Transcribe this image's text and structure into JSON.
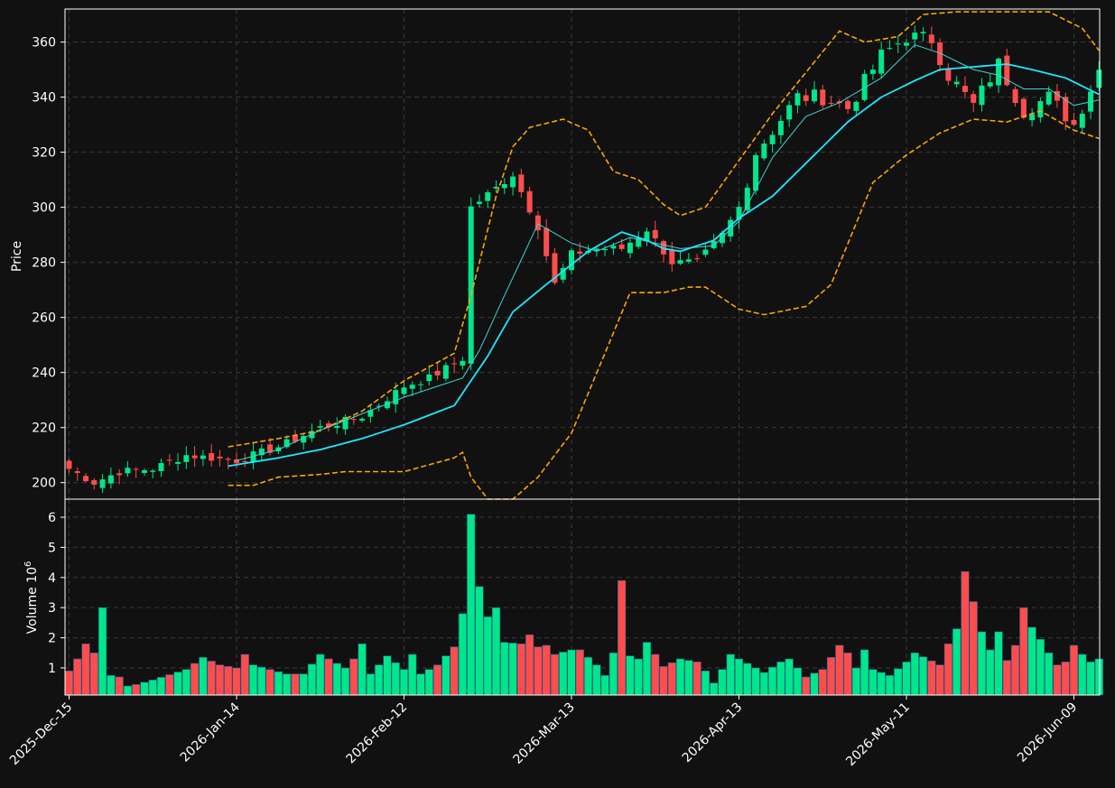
{
  "chart_data": {
    "type": "candlestick",
    "colors": {
      "background": "#111111",
      "up": "#00e68a",
      "down": "#ff4d4d",
      "ma_fast": "#3fd4d4",
      "ma_slow": "#1ee8ff",
      "bollinger": "#ffa500",
      "grid": "#3a3a3a",
      "axis": "#ffffff"
    },
    "price_panel": {
      "ylabel": "Price",
      "ylim": [
        194,
        372
      ],
      "yticks": [
        200,
        220,
        240,
        260,
        280,
        300,
        320,
        340,
        360
      ]
    },
    "volume_panel": {
      "ylabel": "Volume  10",
      "ylabel_exponent": "6",
      "ylim": [
        0.1,
        6.6
      ],
      "yticks": [
        1,
        2,
        3,
        4,
        5,
        6
      ]
    },
    "x_ticks": [
      {
        "index": 0,
        "label": "2025-Dec-15"
      },
      {
        "index": 20,
        "label": "2026-Jan-14"
      },
      {
        "index": 40,
        "label": "2026-Feb-12"
      },
      {
        "index": 60,
        "label": "2026-Mar-13"
      },
      {
        "index": 80,
        "label": "2026-Apr-13"
      },
      {
        "index": 100,
        "label": "2026-May-11"
      },
      {
        "index": 120,
        "label": "2026-Jun-09"
      }
    ],
    "num_sessions": 124,
    "anchors": {
      "close": [
        [
          0,
          205
        ],
        [
          3,
          200
        ],
        [
          6,
          204
        ],
        [
          10,
          205
        ],
        [
          14,
          210
        ],
        [
          20,
          208
        ],
        [
          25,
          213
        ],
        [
          30,
          220
        ],
        [
          35,
          224
        ],
        [
          40,
          235
        ],
        [
          43,
          238
        ],
        [
          47,
          245
        ],
        [
          48,
          300
        ],
        [
          51,
          307
        ],
        [
          53,
          312
        ],
        [
          56,
          293
        ],
        [
          58,
          272
        ],
        [
          60,
          283
        ],
        [
          63,
          285
        ],
        [
          66,
          285
        ],
        [
          69,
          292
        ],
        [
          72,
          280
        ],
        [
          75,
          280
        ],
        [
          78,
          290
        ],
        [
          80,
          300
        ],
        [
          82,
          320
        ],
        [
          84,
          328
        ],
        [
          87,
          340
        ],
        [
          90,
          340
        ],
        [
          93,
          336
        ],
        [
          97,
          355
        ],
        [
          100,
          362
        ],
        [
          103,
          361
        ],
        [
          105,
          348
        ],
        [
          108,
          337
        ],
        [
          111,
          352
        ],
        [
          114,
          335
        ],
        [
          117,
          340
        ],
        [
          120,
          330
        ],
        [
          123,
          350
        ]
      ],
      "ma_fast": [
        [
          20,
          208
        ],
        [
          25,
          212
        ],
        [
          30,
          219
        ],
        [
          35,
          225
        ],
        [
          40,
          231
        ],
        [
          47,
          238
        ],
        [
          49,
          248
        ],
        [
          52,
          268
        ],
        [
          56,
          294
        ],
        [
          60,
          287
        ],
        [
          63,
          284
        ],
        [
          67,
          289
        ],
        [
          70,
          287
        ],
        [
          73,
          285
        ],
        [
          77,
          286
        ],
        [
          80,
          295
        ],
        [
          84,
          318
        ],
        [
          88,
          333
        ],
        [
          92,
          338
        ],
        [
          97,
          347
        ],
        [
          101,
          359
        ],
        [
          104,
          356
        ],
        [
          108,
          350
        ],
        [
          111,
          348
        ],
        [
          114,
          343
        ],
        [
          117,
          343
        ],
        [
          120,
          337
        ],
        [
          123,
          339
        ]
      ],
      "ma_slow": [
        [
          19,
          206
        ],
        [
          25,
          209
        ],
        [
          30,
          212
        ],
        [
          35,
          216
        ],
        [
          40,
          221
        ],
        [
          46,
          228
        ],
        [
          50,
          246
        ],
        [
          53,
          262
        ],
        [
          57,
          272
        ],
        [
          62,
          284
        ],
        [
          66,
          291
        ],
        [
          69,
          288
        ],
        [
          71,
          285
        ],
        [
          73,
          284
        ],
        [
          77,
          288
        ],
        [
          80,
          296
        ],
        [
          84,
          304
        ],
        [
          88,
          316
        ],
        [
          93,
          331
        ],
        [
          97,
          340
        ],
        [
          101,
          346
        ],
        [
          104,
          350
        ],
        [
          108,
          351
        ],
        [
          112,
          352
        ],
        [
          115,
          350
        ],
        [
          119,
          347
        ],
        [
          123,
          341
        ]
      ],
      "bb_upper": [
        [
          19,
          213
        ],
        [
          25,
          216
        ],
        [
          30,
          219
        ],
        [
          35,
          226
        ],
        [
          40,
          237
        ],
        [
          46,
          247
        ],
        [
          48,
          268
        ],
        [
          51,
          304
        ],
        [
          53,
          322
        ],
        [
          55,
          329
        ],
        [
          59,
          332
        ],
        [
          62,
          328
        ],
        [
          65,
          313
        ],
        [
          68,
          310
        ],
        [
          71,
          301
        ],
        [
          73,
          297
        ],
        [
          76,
          300
        ],
        [
          80,
          317
        ],
        [
          84,
          334
        ],
        [
          88,
          349
        ],
        [
          92,
          364
        ],
        [
          95,
          360
        ],
        [
          99,
          362
        ],
        [
          102,
          370
        ],
        [
          106,
          371
        ],
        [
          112,
          371
        ],
        [
          117,
          371
        ],
        [
          121,
          365
        ],
        [
          123,
          357
        ]
      ],
      "bb_lower": [
        [
          19,
          199
        ],
        [
          22,
          199
        ],
        [
          25,
          202
        ],
        [
          30,
          203
        ],
        [
          33,
          204
        ],
        [
          40,
          204
        ],
        [
          46,
          209
        ],
        [
          47,
          211
        ],
        [
          48,
          202
        ],
        [
          50,
          194
        ],
        [
          53,
          194
        ],
        [
          56,
          202
        ],
        [
          60,
          218
        ],
        [
          64,
          247
        ],
        [
          67,
          269
        ],
        [
          71,
          269
        ],
        [
          74,
          271
        ],
        [
          76,
          271
        ],
        [
          80,
          263
        ],
        [
          83,
          261
        ],
        [
          88,
          264
        ],
        [
          91,
          272
        ],
        [
          96,
          309
        ],
        [
          100,
          319
        ],
        [
          104,
          327
        ],
        [
          108,
          332
        ],
        [
          112,
          331
        ],
        [
          116,
          335
        ],
        [
          120,
          328
        ],
        [
          123,
          325
        ]
      ],
      "volume": [
        [
          0,
          0.9
        ],
        [
          1,
          1.3
        ],
        [
          2,
          1.8
        ],
        [
          3,
          1.5
        ],
        [
          4,
          3.0
        ],
        [
          5,
          0.75
        ],
        [
          6,
          0.7
        ],
        [
          7,
          0.4
        ],
        [
          8,
          0.45
        ],
        [
          10,
          0.6
        ],
        [
          14,
          0.95
        ],
        [
          16,
          1.35
        ],
        [
          18,
          1.1
        ],
        [
          20,
          1.0
        ],
        [
          21,
          1.45
        ],
        [
          22,
          1.1
        ],
        [
          24,
          0.95
        ],
        [
          26,
          0.8
        ],
        [
          28,
          0.8
        ],
        [
          30,
          1.45
        ],
        [
          33,
          1.0
        ],
        [
          34,
          1.3
        ],
        [
          35,
          1.8
        ],
        [
          36,
          0.8
        ],
        [
          38,
          1.4
        ],
        [
          40,
          0.95
        ],
        [
          41,
          1.45
        ],
        [
          42,
          0.8
        ],
        [
          44,
          1.1
        ],
        [
          46,
          1.7
        ],
        [
          47,
          2.8
        ],
        [
          48,
          6.1
        ],
        [
          49,
          3.7
        ],
        [
          50,
          2.7
        ],
        [
          51,
          3.0
        ],
        [
          52,
          1.85
        ],
        [
          54,
          1.8
        ],
        [
          55,
          2.1
        ],
        [
          56,
          1.7
        ],
        [
          57,
          1.75
        ],
        [
          58,
          1.45
        ],
        [
          60,
          1.6
        ],
        [
          61,
          1.6
        ],
        [
          63,
          1.1
        ],
        [
          64,
          0.75
        ],
        [
          65,
          1.5
        ],
        [
          66,
          3.9
        ],
        [
          67,
          1.4
        ],
        [
          68,
          1.3
        ],
        [
          69,
          1.85
        ],
        [
          71,
          1.05
        ],
        [
          73,
          1.3
        ],
        [
          75,
          1.2
        ],
        [
          76,
          0.9
        ],
        [
          77,
          0.5
        ],
        [
          78,
          0.95
        ],
        [
          79,
          1.45
        ],
        [
          81,
          1.15
        ],
        [
          83,
          0.85
        ],
        [
          85,
          1.2
        ],
        [
          86,
          1.3
        ],
        [
          88,
          0.7
        ],
        [
          90,
          0.95
        ],
        [
          92,
          1.75
        ],
        [
          93,
          1.5
        ],
        [
          94,
          1.0
        ],
        [
          95,
          1.6
        ],
        [
          96,
          0.95
        ],
        [
          98,
          0.75
        ],
        [
          100,
          1.2
        ],
        [
          101,
          1.5
        ],
        [
          104,
          1.1
        ],
        [
          105,
          1.8
        ],
        [
          106,
          2.3
        ],
        [
          107,
          4.2
        ],
        [
          108,
          3.2
        ],
        [
          109,
          2.2
        ],
        [
          110,
          1.6
        ],
        [
          111,
          2.2
        ],
        [
          112,
          1.25
        ],
        [
          113,
          1.75
        ],
        [
          114,
          3.0
        ],
        [
          115,
          2.35
        ],
        [
          116,
          1.95
        ],
        [
          117,
          1.5
        ],
        [
          118,
          1.1
        ],
        [
          119,
          1.2
        ],
        [
          120,
          1.75
        ],
        [
          121,
          1.45
        ],
        [
          122,
          1.2
        ],
        [
          123,
          1.3
        ]
      ]
    }
  }
}
